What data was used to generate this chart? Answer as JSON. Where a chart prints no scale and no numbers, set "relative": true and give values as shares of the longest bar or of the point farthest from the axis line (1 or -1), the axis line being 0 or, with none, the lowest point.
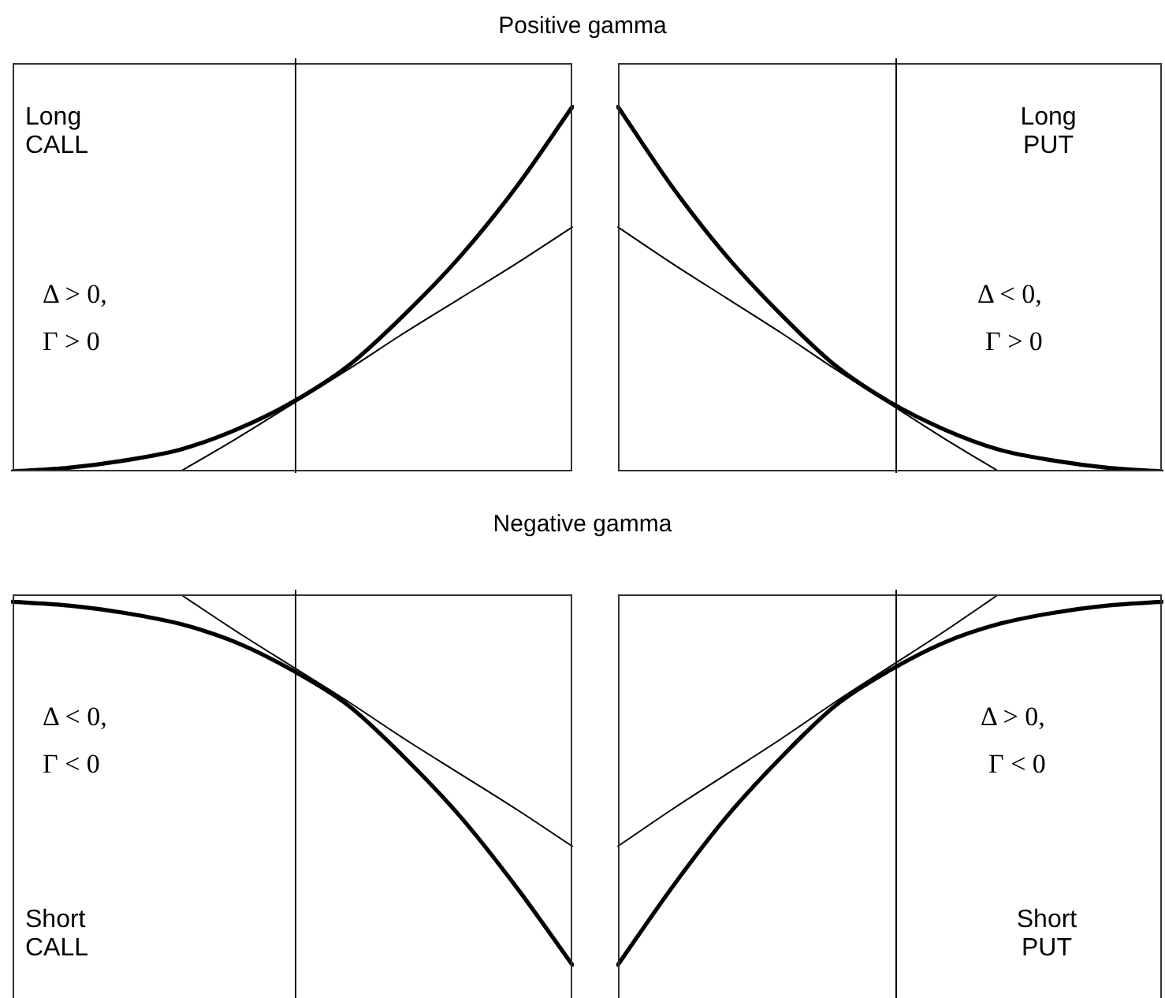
{
  "chart_data": [
    {
      "type": "line",
      "title": "Positive gamma",
      "relative": true,
      "marker": "none",
      "line_style": "solid",
      "annotations": [
        "Long CALL",
        "Δ > 0,",
        "Γ > 0"
      ],
      "categories": [
        null,
        null,
        null,
        null,
        null,
        null,
        null,
        null,
        null,
        null,
        null
      ],
      "series": [
        {
          "color": "#000000",
          "values": [
            0,
            0.01,
            0.03,
            0.06,
            0.115,
            0.19,
            0.29,
            0.43,
            0.59,
            0.78,
            1
          ]
        },
        {
          "color": "#000000",
          "values": [
            null,
            null,
            null,
            0,
            0.09,
            0.185,
            0.28,
            0.38,
            0.475,
            0.57,
            0.67
          ]
        }
      ]
    },
    {
      "type": "line",
      "relative": true,
      "marker": "none",
      "line_style": "solid",
      "annotations": [
        "Long PUT",
        "Δ < 0,",
        "Γ > 0"
      ],
      "categories": [
        null,
        null,
        null,
        null,
        null,
        null,
        null,
        null,
        null,
        null,
        null
      ],
      "series": [
        {
          "color": "#000000",
          "values": [
            1,
            0.78,
            0.59,
            0.43,
            0.29,
            0.19,
            0.115,
            0.06,
            0.03,
            0.01,
            0
          ]
        },
        {
          "color": "#000000",
          "values": [
            0.67,
            0.57,
            0.475,
            0.38,
            0.28,
            0.185,
            0.09,
            0,
            null,
            null,
            null
          ]
        }
      ]
    },
    {
      "type": "line",
      "title": "Negative gamma",
      "relative": true,
      "marker": "none",
      "line_style": "solid",
      "annotations": [
        "Δ < 0,",
        "Γ < 0",
        "Short CALL"
      ],
      "categories": [
        null,
        null,
        null,
        null,
        null,
        null,
        null,
        null,
        null,
        null,
        null
      ],
      "series": [
        {
          "color": "#000000",
          "values": [
            -0.02,
            -0.03,
            -0.05,
            -0.08,
            -0.13,
            -0.205,
            -0.3,
            -0.44,
            -0.6,
            -0.79,
            -1
          ]
        },
        {
          "color": "#000000",
          "values": [
            null,
            null,
            null,
            0,
            -0.1,
            -0.195,
            -0.29,
            -0.39,
            -0.485,
            -0.58,
            -0.68
          ]
        }
      ]
    },
    {
      "type": "line",
      "relative": true,
      "marker": "none",
      "line_style": "solid",
      "annotations": [
        "Δ > 0,",
        "Γ < 0",
        "Short PUT"
      ],
      "categories": [
        null,
        null,
        null,
        null,
        null,
        null,
        null,
        null,
        null,
        null,
        null
      ],
      "series": [
        {
          "color": "#000000",
          "values": [
            -1,
            -0.79,
            -0.6,
            -0.44,
            -0.3,
            -0.205,
            -0.13,
            -0.08,
            -0.05,
            -0.03,
            -0.02
          ]
        },
        {
          "color": "#000000",
          "values": [
            -0.68,
            -0.58,
            -0.485,
            -0.39,
            -0.29,
            -0.195,
            -0.1,
            0,
            null,
            null,
            null
          ]
        }
      ]
    }
  ]
}
